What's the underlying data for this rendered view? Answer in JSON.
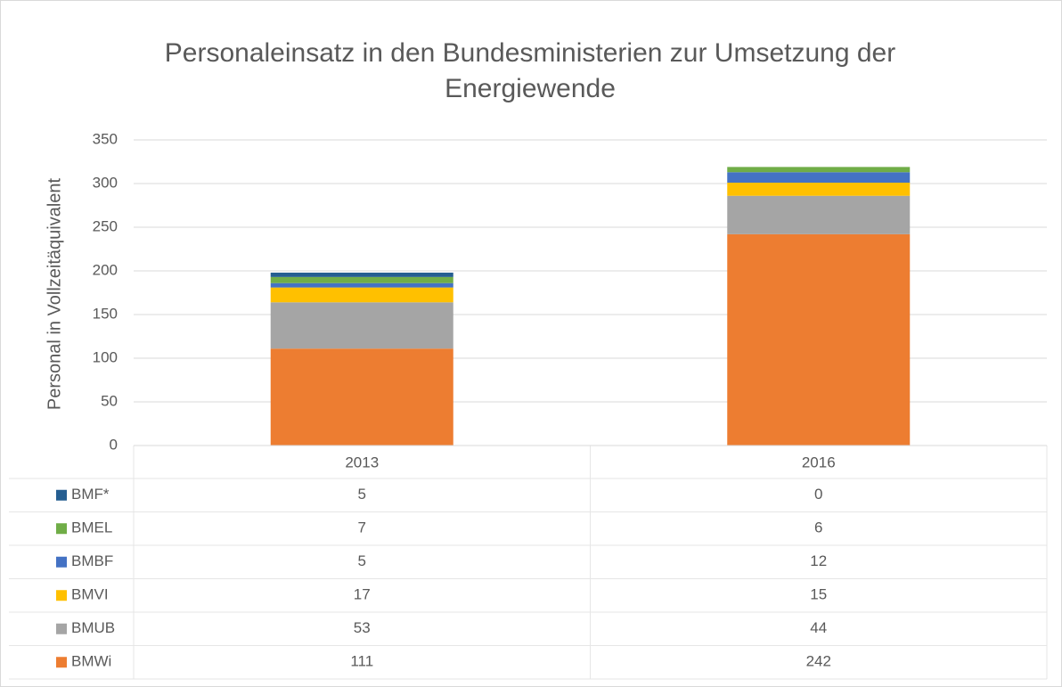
{
  "chart_data": {
    "type": "stacked_bar",
    "title": "Personaleinsatz in den Bundesministerien zur Umsetzung der Energiewende",
    "y_label": "Personal in Vollzeitäquivalent",
    "categories": [
      "2013",
      "2016"
    ],
    "series": [
      {
        "name": "BMWi",
        "color": "#ED7D31",
        "values": [
          111,
          242
        ]
      },
      {
        "name": "BMUB",
        "color": "#A5A5A5",
        "values": [
          53,
          44
        ]
      },
      {
        "name": "BMVI",
        "color": "#FFC000",
        "values": [
          17,
          15
        ]
      },
      {
        "name": "BMBF",
        "color": "#4472C4",
        "values": [
          5,
          12
        ]
      },
      {
        "name": "BMEL",
        "color": "#70AD47",
        "values": [
          7,
          6
        ]
      },
      {
        "name": "BMF*",
        "color": "#255E91",
        "values": [
          5,
          0
        ]
      }
    ],
    "ylim": [
      0,
      350
    ],
    "yticks": [
      0,
      50,
      100,
      150,
      200,
      250,
      300,
      350
    ],
    "grid": true
  }
}
